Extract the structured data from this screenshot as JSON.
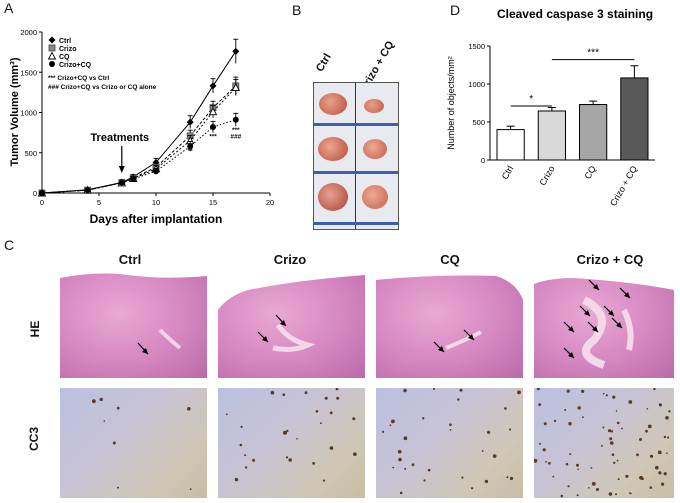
{
  "panels": {
    "a": {
      "letter": "A"
    },
    "b": {
      "letter": "B"
    },
    "c": {
      "letter": "C"
    },
    "d": {
      "letter": "D"
    }
  },
  "chart_data": [
    {
      "type": "line",
      "ylabel": "Tumor Volume (mm³)",
      "xlabel": "Days after implantation",
      "xlim": [
        0,
        20
      ],
      "ylim": [
        0,
        2000
      ],
      "xticks": [
        "0",
        "5",
        "10",
        "15",
        "20"
      ],
      "yticks": [
        "0",
        "500",
        "1000",
        "1500",
        "2000"
      ],
      "legend": [
        "Ctrl",
        "Crizo",
        "CQ",
        "Crizo+CQ"
      ],
      "legend_placement": "top-left",
      "annotations": {
        "treatments": "Treatments",
        "treatments_day": 7,
        "sig1": "*** Crizo+CQ vs Ctrl",
        "sig2": "### Crizo+CQ vs Crizo or CQ alone",
        "stars_d13": "**",
        "stars_d15": "***",
        "stars_d17": "***",
        "hash_d17": "###"
      },
      "x": [
        0,
        4,
        7,
        8,
        10,
        13,
        15,
        17
      ],
      "series": [
        {
          "name": "Ctrl",
          "values": [
            0,
            40,
            130,
            200,
            380,
            880,
            1330,
            1760
          ],
          "err": [
            0,
            10,
            20,
            30,
            50,
            80,
            90,
            150
          ]
        },
        {
          "name": "Crizo",
          "values": [
            0,
            35,
            130,
            185,
            320,
            710,
            1060,
            1330
          ],
          "err": [
            0,
            10,
            15,
            25,
            45,
            70,
            80,
            110
          ]
        },
        {
          "name": "CQ",
          "values": [
            0,
            35,
            125,
            180,
            300,
            650,
            1010,
            1310
          ],
          "err": [
            0,
            10,
            15,
            25,
            40,
            65,
            75,
            100
          ]
        },
        {
          "name": "Crizo+CQ",
          "values": [
            0,
            35,
            130,
            175,
            270,
            580,
            820,
            910
          ],
          "err": [
            0,
            10,
            15,
            20,
            35,
            60,
            70,
            80
          ]
        }
      ]
    },
    {
      "type": "bar",
      "title": "Cleaved caspase 3 staining",
      "ylabel": "Number of objects/mm²",
      "ylim": [
        0,
        1500
      ],
      "yticks": [
        "0",
        "500",
        "1000",
        "1500"
      ],
      "categories": [
        "Ctrl",
        "Crizo",
        "CQ",
        "Crizo + CQ"
      ],
      "values": [
        400,
        645,
        730,
        1080
      ],
      "err": [
        45,
        45,
        45,
        160
      ],
      "colors": [
        "#ffffff",
        "#d9d9d9",
        "#a6a6a6",
        "#595959"
      ],
      "sig": [
        {
          "from": 0,
          "to": 1,
          "label": "*"
        },
        {
          "from": 1,
          "to": 3,
          "label": "***"
        }
      ]
    }
  ],
  "photo": {
    "col1": "Ctrl",
    "col2": "Crizo + CQ"
  },
  "histology": {
    "columns": [
      "Ctrl",
      "Crizo",
      "CQ",
      "Crizo + CQ"
    ],
    "rows": [
      "HE",
      "CC3"
    ]
  }
}
